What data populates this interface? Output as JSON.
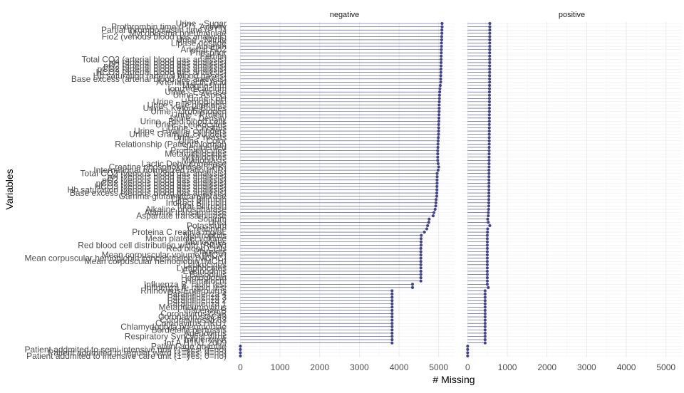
{
  "chart_data": {
    "type": "lollipop",
    "xlabel": "# Missing",
    "ylabel": "Variables",
    "xlim": [
      -150,
      5400
    ],
    "x_ticks": [
      0,
      1000,
      2000,
      3000,
      4000,
      5000
    ],
    "tick_labels": [
      "0",
      "1000",
      "2000",
      "3000",
      "4000",
      "5000"
    ],
    "grid": true,
    "colors": {
      "point": "#414487",
      "stem": "#414487",
      "panel_strip_text": "#1a1a1a",
      "axis_text": "#4d4d4d"
    },
    "facets": [
      "negative",
      "positive"
    ],
    "variables": [
      "Urine - Sugar",
      "Prothrombin time (PT), Activity",
      "Partial thromboplastin time (PTT)",
      "Mycoplasma pneumoniae",
      "Fio2 (venous blood gas analysis)",
      "Urine - Nitrite",
      "Lipase dosage",
      "Albumin",
      "Arterial Fio2",
      "Phosphor",
      "Ferritin",
      "Total CO2 (arterial blood gas analysis)",
      "pH (arterial blood gas analysis)",
      "pO2 (arterial blood gas analysis)",
      "pCO2 (arterial blood gas analysis)",
      "HCO3 (arterial blood gas analysis)",
      "Hb saturation (arterial blood gases)",
      "Base excess (arterial blood gas analysis)",
      "Arterial Lactic Acid",
      "Magnesium",
      "Ionized calcium",
      "Urine - Esterase",
      "Urine - Aspect",
      "Urine - pH",
      "Urine - Hemoglobin",
      "Urine - Bile pigments",
      "Urine - Ketone Bodies",
      "Urine - Urobilinogen",
      "Urine - Protein",
      "Urine - Density",
      "Urine - Red blood cells",
      "Urine - Leukocytes",
      "Urine - Crystals",
      "Urine - Hyaline cylinders",
      "Urine - Granular cylinders",
      "Urine - Yeasts",
      "Urine - Color",
      "Relationship (Patient/Normal)",
      "Segmented",
      "Promyelocytes",
      "Metamyelocytes",
      "Myelocytes",
      "Myeloblasts",
      "Lactic Dehydrogenase",
      "Creatine phosphokinase (CPK)",
      "International normalized ratio (INR)",
      "Total CO2 (venous blood gas analysis)",
      "pH (venous blood gas analysis)",
      "pO2 (venous blood gas analysis)",
      "pCO2 (venous blood gas analysis)",
      "HCO3 (venous blood gas analysis)",
      "Hb saturation (venous blood gas analysis)",
      "Base excess (venous blood gas analysis)",
      "Gamma-glutamyltransferase",
      "Direct Bilirubin",
      "Indirect Bilirubin",
      "Total Bilirubin",
      "Alkaline phosphatase",
      "Alanine transaminase",
      "Aspartate transaminase",
      "Sodium",
      "Urea",
      "Potassium",
      "Creatinine",
      "Proteina C reativa mg/dL",
      "Neutrophils",
      "Mean platelet volume",
      "Monocytes",
      "Red blood cell distribution width (RDW)",
      "Red blood Cells",
      "Platelets",
      "Mean corpuscular volume (MCV)",
      "Mean corpuscular hemoglobin concentration (MCHC)",
      "Mean corpuscular hemoglobin (MCH)",
      "Leukocytes",
      "Lymphocytes",
      "Eosinophils",
      "Basophils",
      "Hemoglobin",
      "Hematocrit",
      "Influenza B, rapid test",
      "Influenza A, rapid test",
      "Rhinovirus/Enterovirus",
      "Parainfluenza 4",
      "Parainfluenza 3",
      "Parainfluenza 2",
      "Parainfluenza 1",
      "Metapneumovirus",
      "Influenza B",
      "Coronavirus229E",
      "CoronavirusOC43",
      "CoronavirusNL63",
      "Coronavirus HKU1",
      "Chlamydophila pneumoniae",
      "Bordetella pertussis",
      "Adenovirus",
      "Respiratory Syncytial Virus",
      "Influenza A",
      "Inf A H1N1 2009",
      "Patient age quantile",
      "Patient addmited to semi-intensive unit (1=yes, 0=no)",
      "Patient addmited to regular ward (1=yes, 0=no)",
      "Patient addmited to intensive care unit (1=yes, 0=no)"
    ],
    "series": [
      {
        "name": "negative",
        "values": [
          5085,
          5085,
          5080,
          5080,
          5075,
          5075,
          5070,
          5070,
          5065,
          5065,
          5062,
          5060,
          5060,
          5058,
          5056,
          5055,
          5052,
          5050,
          5050,
          5040,
          5030,
          5025,
          5020,
          5018,
          5015,
          5012,
          5012,
          5010,
          5008,
          5006,
          5004,
          5000,
          5000,
          4998,
          4995,
          4990,
          4985,
          4982,
          4980,
          4975,
          4975,
          4975,
          4975,
          4985,
          5000,
          4985,
          4960,
          4960,
          4958,
          4958,
          4955,
          4955,
          4952,
          4950,
          4935,
          4930,
          4925,
          4910,
          4880,
          4860,
          4760,
          4750,
          4720,
          4700,
          4640,
          4560,
          4555,
          4555,
          4555,
          4550,
          4550,
          4550,
          4550,
          4550,
          4550,
          4550,
          4550,
          4550,
          4550,
          4550,
          4340,
          4340,
          3825,
          3825,
          3825,
          3825,
          3825,
          3825,
          3825,
          3825,
          3825,
          3825,
          3825,
          3825,
          3825,
          3825,
          3825,
          3825,
          3825,
          0,
          0,
          0,
          0
        ]
      },
      {
        "name": "positive",
        "values": [
          558,
          558,
          558,
          557,
          557,
          557,
          556,
          556,
          556,
          555,
          555,
          555,
          555,
          554,
          554,
          554,
          553,
          553,
          553,
          552,
          551,
          550,
          550,
          549,
          549,
          549,
          548,
          548,
          547,
          547,
          547,
          546,
          546,
          546,
          545,
          545,
          545,
          544,
          543,
          542,
          542,
          541,
          541,
          540,
          540,
          538,
          538,
          537,
          537,
          537,
          536,
          536,
          535,
          535,
          534,
          533,
          532,
          528,
          522,
          520,
          505,
          520,
          558,
          505,
          500,
          495,
          495,
          495,
          495,
          495,
          495,
          495,
          495,
          495,
          495,
          495,
          495,
          495,
          495,
          495,
          495,
          520,
          440,
          440,
          440,
          440,
          440,
          440,
          440,
          440,
          440,
          440,
          440,
          440,
          440,
          440,
          440,
          440,
          440,
          0,
          0,
          0,
          0
        ]
      }
    ]
  }
}
